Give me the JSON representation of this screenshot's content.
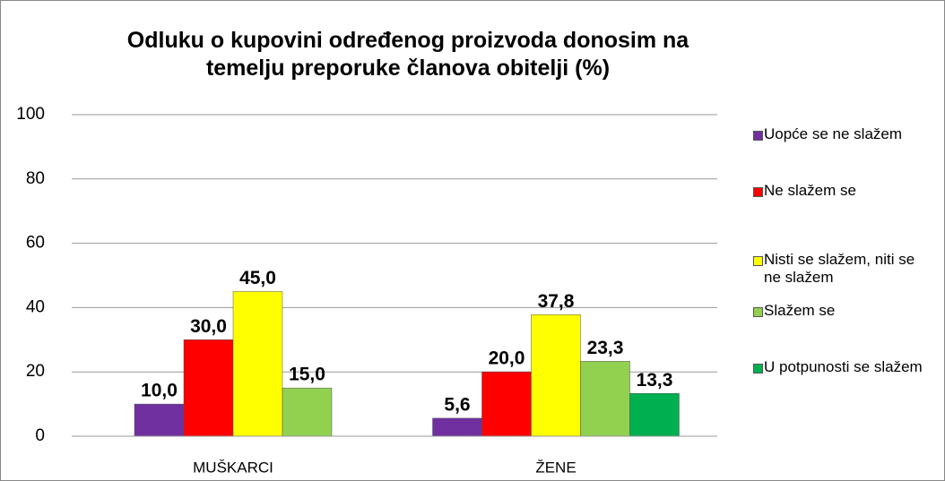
{
  "chart_data": {
    "type": "bar",
    "title": "Odluku o kupovini određenog proizvoda donosim na temelju preporuke članova obitelji (%)",
    "categories": [
      "MUŠKARCI",
      "ŽENE"
    ],
    "series": [
      {
        "name": "Uopće se ne slažem",
        "color": "#7030a0",
        "values": [
          10.0,
          5.6
        ],
        "value_labels": [
          "10,0",
          "5,6"
        ]
      },
      {
        "name": "Ne slažem se",
        "color": "#ff0000",
        "values": [
          30.0,
          20.0
        ],
        "value_labels": [
          "30,0",
          "20,0"
        ]
      },
      {
        "name": "Nisti se slažem, niti se ne slažem",
        "color": "#ffff00",
        "values": [
          45.0,
          37.8
        ],
        "value_labels": [
          "45,0",
          "37,8"
        ]
      },
      {
        "name": "Slažem se",
        "color": "#92d050",
        "values": [
          15.0,
          23.3
        ],
        "value_labels": [
          "15,0",
          "23,3"
        ]
      },
      {
        "name": "U potpunosti se slažem",
        "color": "#00b050",
        "values": [
          null,
          13.3
        ],
        "value_labels": [
          null,
          "13,3"
        ]
      }
    ],
    "ylim": [
      0,
      100
    ],
    "yticks": [
      0,
      20,
      40,
      60,
      80,
      100
    ],
    "grid": true,
    "legend": "right"
  }
}
